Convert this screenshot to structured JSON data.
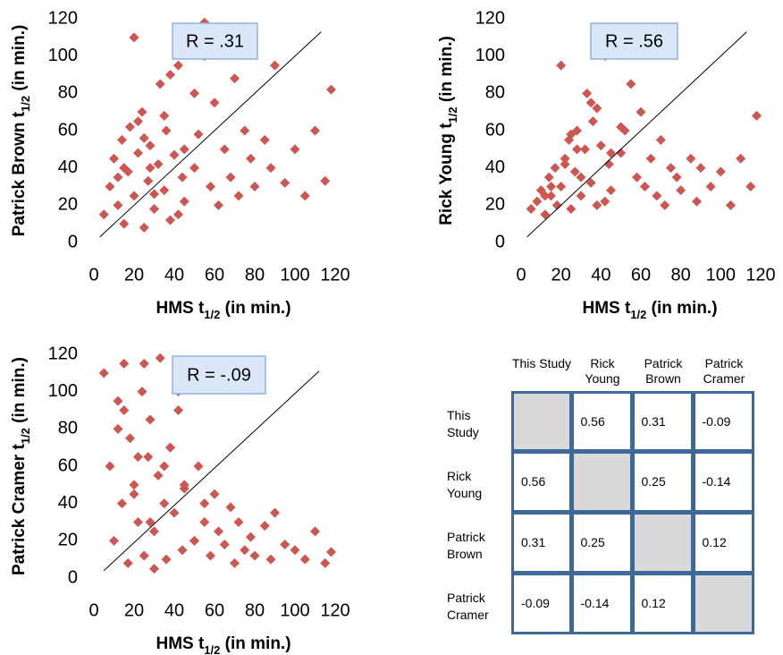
{
  "chart_data": [
    {
      "type": "scatter",
      "color": "#cd5651",
      "xlabel": [
        "HMS t",
        "1/2",
        " (in min.)"
      ],
      "ylabel": [
        "Patrick Brown t",
        "1/2",
        " (in min.)"
      ],
      "annotation": "R = .31",
      "xlim": [
        0,
        120
      ],
      "ylim": [
        0,
        120
      ],
      "xticks": [
        0,
        20,
        40,
        60,
        80,
        100,
        120
      ],
      "yticks": [
        0,
        20,
        40,
        60,
        80,
        100,
        120
      ],
      "diagonal": {
        "x": [
          3,
          113
        ],
        "y": [
          3,
          113
        ]
      },
      "x": [
        5,
        8,
        10,
        12,
        14,
        15,
        17,
        18,
        20,
        22,
        24,
        25,
        27,
        28,
        30,
        32,
        33,
        35,
        36,
        38,
        40,
        42,
        44,
        45,
        47,
        50,
        52,
        55,
        58,
        60,
        62,
        65,
        68,
        70,
        72,
        75,
        78,
        80,
        85,
        88,
        90,
        95,
        100,
        105,
        110,
        115,
        118,
        12,
        20,
        28,
        35,
        42,
        50,
        55,
        25,
        30,
        38,
        45,
        15,
        22
      ],
      "y": [
        15,
        30,
        45,
        20,
        55,
        10,
        38,
        62,
        25,
        48,
        70,
        8,
        33,
        52,
        18,
        42,
        85,
        28,
        60,
        12,
        47,
        95,
        35,
        22,
        105,
        40,
        58,
        118,
        30,
        75,
        20,
        50,
        35,
        88,
        25,
        60,
        45,
        30,
        55,
        40,
        95,
        32,
        50,
        25,
        60,
        33,
        82,
        35,
        110,
        40,
        68,
        15,
        80,
        100,
        56,
        26,
        90,
        50,
        40,
        65
      ]
    },
    {
      "type": "scatter",
      "color": "#cd5651",
      "xlabel": [
        "HMS t",
        "1/2",
        " (in min.)"
      ],
      "ylabel": [
        "Rick Young t",
        "1/2",
        " (in min.)"
      ],
      "annotation": "R = .56",
      "xlim": [
        0,
        120
      ],
      "ylim": [
        0,
        120
      ],
      "xticks": [
        0,
        20,
        40,
        60,
        80,
        100,
        120
      ],
      "yticks": [
        0,
        20,
        40,
        60,
        80,
        100,
        120
      ],
      "diagonal": {
        "x": [
          3,
          113
        ],
        "y": [
          3,
          113
        ]
      },
      "x": [
        5,
        8,
        10,
        12,
        14,
        15,
        17,
        18,
        20,
        22,
        24,
        25,
        27,
        28,
        30,
        32,
        33,
        35,
        36,
        38,
        40,
        42,
        44,
        45,
        47,
        50,
        52,
        55,
        58,
        60,
        62,
        65,
        68,
        70,
        72,
        75,
        78,
        80,
        85,
        88,
        90,
        95,
        100,
        105,
        110,
        115,
        118,
        12,
        20,
        28,
        35,
        42,
        50,
        55,
        25,
        30,
        38,
        45,
        15,
        22
      ],
      "y": [
        18,
        22,
        28,
        15,
        35,
        25,
        40,
        20,
        30,
        45,
        55,
        18,
        38,
        60,
        25,
        50,
        80,
        32,
        65,
        20,
        52,
        100,
        42,
        28,
        110,
        48,
        60,
        115,
        35,
        70,
        30,
        45,
        25,
        55,
        20,
        40,
        35,
        28,
        45,
        22,
        40,
        30,
        38,
        20,
        45,
        30,
        68,
        25,
        95,
        50,
        75,
        22,
        62,
        85,
        58,
        35,
        72,
        48,
        30,
        42
      ]
    },
    {
      "type": "scatter",
      "color": "#cd5651",
      "xlabel": [
        "HMS t",
        "1/2",
        " (in min.)"
      ],
      "ylabel": [
        "Patrick Cramer t",
        "1/2",
        " (in min.)"
      ],
      "annotation": "R = -.09",
      "xlim": [
        0,
        120
      ],
      "ylim": [
        0,
        120
      ],
      "xticks": [
        0,
        20,
        40,
        60,
        80,
        100,
        120
      ],
      "yticks": [
        0,
        20,
        40,
        60,
        80,
        100,
        120
      ],
      "diagonal": {
        "x": [
          5,
          112
        ],
        "y": [
          4,
          111
        ]
      },
      "x": [
        5,
        8,
        10,
        12,
        14,
        15,
        17,
        18,
        20,
        22,
        24,
        25,
        27,
        28,
        30,
        32,
        33,
        35,
        36,
        38,
        40,
        42,
        44,
        45,
        47,
        50,
        52,
        55,
        58,
        60,
        62,
        65,
        68,
        70,
        72,
        75,
        78,
        80,
        85,
        88,
        90,
        95,
        100,
        105,
        110,
        115,
        118,
        12,
        20,
        28,
        35,
        42,
        50,
        55,
        25,
        30,
        38,
        45,
        15,
        22
      ],
      "y": [
        110,
        60,
        20,
        95,
        40,
        115,
        8,
        75,
        50,
        30,
        100,
        12,
        65,
        85,
        25,
        55,
        118,
        40,
        10,
        70,
        35,
        90,
        15,
        48,
        105,
        20,
        60,
        30,
        12,
        45,
        25,
        18,
        38,
        8,
        30,
        15,
        22,
        12,
        28,
        10,
        35,
        18,
        15,
        10,
        25,
        8,
        14,
        80,
        45,
        30,
        60,
        100,
        20,
        40,
        115,
        5,
        70,
        50,
        90,
        65
      ]
    }
  ],
  "table": {
    "columns": [
      "This Study",
      "Rick Young",
      "Patrick Brown",
      "Patrick Cramer"
    ],
    "rows": [
      {
        "label": "This Study",
        "cells": [
          null,
          "0.56",
          "0.31",
          "-0.09"
        ]
      },
      {
        "label": "Rick Young",
        "cells": [
          "0.56",
          null,
          "0.25",
          "-0.14"
        ]
      },
      {
        "label": "Patrick Brown",
        "cells": [
          "0.31",
          "0.25",
          null,
          "0.12"
        ]
      },
      {
        "label": "Patrick Cramer",
        "cells": [
          "-0.09",
          "-0.14",
          "0.12",
          null
        ]
      }
    ]
  }
}
